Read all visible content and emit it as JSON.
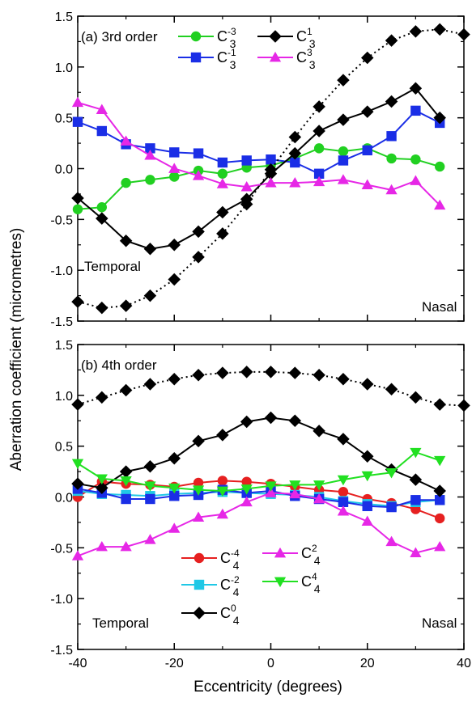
{
  "figure": {
    "ylabel": "Aberration coefficient (micrometres)",
    "xlabel": "Eccentricity (degrees)"
  },
  "chart_data": [
    {
      "type": "line",
      "title": "(a) 3rd order",
      "xlim": [
        -40,
        40
      ],
      "ylim": [
        -1.5,
        1.5
      ],
      "xticks": [
        "-40",
        "-20",
        "0",
        "20",
        "40"
      ],
      "yticks": [
        "-1.5",
        "-1.0",
        "-0.5",
        "0.0",
        "0.5",
        "1.0",
        "1.5"
      ],
      "annotations": {
        "left": "Temporal",
        "right": "Nasal"
      },
      "legend_position": "top",
      "series": [
        {
          "key": "c3m3",
          "base": "C",
          "sup": "-3",
          "sub": "3",
          "color": "#21d021",
          "marker": "circle",
          "line": "solid",
          "x": [
            -40,
            -35,
            -30,
            -25,
            -20,
            -15,
            -10,
            -5,
            0,
            5,
            10,
            15,
            20,
            25,
            30,
            35
          ],
          "y": [
            -0.4,
            -0.38,
            -0.14,
            -0.11,
            -0.08,
            -0.02,
            -0.05,
            0.01,
            0.03,
            0.1,
            0.2,
            0.17,
            0.2,
            0.1,
            0.09,
            0.02
          ]
        },
        {
          "key": "c3m1",
          "base": "C",
          "sup": "-1",
          "sub": "3",
          "color": "#1a2ee6",
          "marker": "square",
          "line": "solid",
          "x": [
            -40,
            -35,
            -30,
            -25,
            -20,
            -15,
            -10,
            -5,
            0,
            5,
            10,
            15,
            20,
            25,
            30,
            35
          ],
          "y": [
            0.46,
            0.37,
            0.24,
            0.2,
            0.16,
            0.15,
            0.06,
            0.08,
            0.09,
            0.06,
            -0.05,
            0.08,
            0.18,
            0.32,
            0.57,
            0.45
          ]
        },
        {
          "key": "c31",
          "base": "C",
          "sup": "1",
          "sub": "3",
          "color": "#000000",
          "marker": "diamond",
          "line": "solid",
          "x": [
            -40,
            -35,
            -30,
            -25,
            -20,
            -15,
            -10,
            -5,
            0,
            5,
            10,
            15,
            20,
            25,
            30,
            35
          ],
          "y": [
            -0.29,
            -0.49,
            -0.71,
            -0.79,
            -0.75,
            -0.62,
            -0.43,
            -0.3,
            -0.05,
            0.15,
            0.37,
            0.48,
            0.56,
            0.66,
            0.79,
            0.5
          ]
        },
        {
          "key": "c33",
          "base": "C",
          "sup": "3",
          "sub": "3",
          "color": "#e627e6",
          "marker": "triangle-up",
          "line": "solid",
          "x": [
            -40,
            -35,
            -30,
            -25,
            -20,
            -15,
            -10,
            -5,
            0,
            5,
            10,
            15,
            20,
            25,
            30,
            35
          ],
          "y": [
            0.65,
            0.58,
            0.27,
            0.13,
            0.0,
            -0.07,
            -0.15,
            -0.18,
            -0.14,
            -0.14,
            -0.13,
            -0.11,
            -0.16,
            -0.21,
            -0.12,
            -0.36
          ]
        },
        {
          "key": "c31dot",
          "base": "",
          "sup": "",
          "sub": "",
          "color": "#000000",
          "marker": "diamond",
          "line": "dotted",
          "x": [
            -40,
            -35,
            -30,
            -25,
            -20,
            -15,
            -10,
            -5,
            0,
            5,
            10,
            15,
            20,
            25,
            30,
            35,
            40
          ],
          "y": [
            -1.31,
            -1.37,
            -1.35,
            -1.25,
            -1.09,
            -0.87,
            -0.64,
            -0.35,
            -0.01,
            0.31,
            0.61,
            0.87,
            1.09,
            1.26,
            1.35,
            1.37,
            1.32
          ]
        }
      ]
    },
    {
      "type": "line",
      "title": "(b) 4th order",
      "xlim": [
        -40,
        40
      ],
      "ylim": [
        -1.5,
        1.5
      ],
      "xticks": [
        "-40",
        "-20",
        "0",
        "20",
        "40"
      ],
      "yticks": [
        "-1.5",
        "-1.0",
        "-0.5",
        "0.0",
        "0.5",
        "1.0",
        "1.5"
      ],
      "annotations": {
        "left": "Temporal",
        "right": "Nasal"
      },
      "legend_position": "bottom-center",
      "series": [
        {
          "key": "c4m4",
          "base": "C",
          "sup": "-4",
          "sub": "4",
          "color": "#e62020",
          "marker": "circle",
          "line": "solid",
          "x": [
            -40,
            -35,
            -30,
            -25,
            -20,
            -15,
            -10,
            -5,
            0,
            5,
            10,
            15,
            20,
            25,
            30,
            35
          ],
          "y": [
            0.0,
            0.15,
            0.13,
            0.12,
            0.1,
            0.14,
            0.16,
            0.15,
            0.13,
            0.1,
            0.07,
            0.05,
            -0.02,
            -0.06,
            -0.12,
            -0.21
          ]
        },
        {
          "key": "c4m2",
          "base": "C",
          "sup": "-2",
          "sub": "4",
          "color": "#20c8e6",
          "marker": "square",
          "line": "solid",
          "x": [
            -40,
            -35,
            -30,
            -25,
            -20,
            -15,
            -10,
            -5,
            0,
            5,
            10,
            15,
            20,
            25,
            30,
            35
          ],
          "y": [
            0.06,
            0.03,
            0.02,
            0.01,
            0.03,
            0.04,
            0.05,
            0.04,
            0.03,
            0.02,
            0.0,
            -0.04,
            -0.07,
            -0.09,
            -0.05,
            -0.03
          ]
        },
        {
          "key": "c4m2b",
          "base": "",
          "sup": "",
          "sub": "",
          "color": "#1a2ee6",
          "marker": "square",
          "line": "solid",
          "x": [
            -40,
            -35,
            -30,
            -25,
            -20,
            -15,
            -10,
            -5,
            0,
            5,
            10,
            15,
            20,
            25,
            30,
            35
          ],
          "y": [
            0.08,
            0.04,
            -0.02,
            -0.02,
            0.01,
            0.02,
            0.07,
            0.04,
            0.06,
            0.01,
            -0.02,
            -0.05,
            -0.09,
            -0.1,
            -0.03,
            -0.03
          ]
        },
        {
          "key": "c40",
          "base": "C",
          "sup": "0",
          "sub": "4",
          "color": "#000000",
          "marker": "diamond",
          "line": "solid",
          "x": [
            -40,
            -35,
            -30,
            -25,
            -20,
            -15,
            -10,
            -5,
            0,
            5,
            10,
            15,
            20,
            25,
            30,
            35
          ],
          "y": [
            0.13,
            0.09,
            0.25,
            0.3,
            0.38,
            0.55,
            0.61,
            0.74,
            0.78,
            0.75,
            0.65,
            0.57,
            0.4,
            0.27,
            0.17,
            0.06
          ]
        },
        {
          "key": "c42",
          "base": "C",
          "sup": "2",
          "sub": "4",
          "color": "#e627e6",
          "marker": "triangle-up",
          "line": "solid",
          "x": [
            -40,
            -35,
            -30,
            -25,
            -20,
            -15,
            -10,
            -5,
            0,
            5,
            10,
            15,
            20,
            25,
            30,
            35
          ],
          "y": [
            -0.58,
            -0.49,
            -0.49,
            -0.42,
            -0.31,
            -0.2,
            -0.17,
            -0.05,
            0.04,
            0.03,
            -0.02,
            -0.14,
            -0.24,
            -0.44,
            -0.55,
            -0.49
          ]
        },
        {
          "key": "c44",
          "base": "C",
          "sup": "4",
          "sub": "4",
          "color": "#21e021",
          "marker": "triangle-down",
          "line": "solid",
          "x": [
            -40,
            -35,
            -30,
            -25,
            -20,
            -15,
            -10,
            -5,
            0,
            5,
            10,
            15,
            20,
            25,
            30,
            35
          ],
          "y": [
            0.33,
            0.18,
            0.16,
            0.11,
            0.09,
            0.07,
            0.06,
            0.08,
            0.11,
            0.12,
            0.12,
            0.17,
            0.21,
            0.24,
            0.44,
            0.36
          ]
        },
        {
          "key": "c40dot",
          "base": "",
          "sup": "",
          "sub": "",
          "color": "#000000",
          "marker": "diamond",
          "line": "dotted",
          "x": [
            -40,
            -35,
            -30,
            -25,
            -20,
            -15,
            -10,
            -5,
            0,
            5,
            10,
            15,
            20,
            25,
            30,
            35,
            40
          ],
          "y": [
            0.91,
            0.98,
            1.05,
            1.11,
            1.16,
            1.2,
            1.22,
            1.23,
            1.23,
            1.22,
            1.2,
            1.16,
            1.11,
            1.06,
            0.98,
            0.91,
            0.9
          ]
        }
      ]
    }
  ]
}
